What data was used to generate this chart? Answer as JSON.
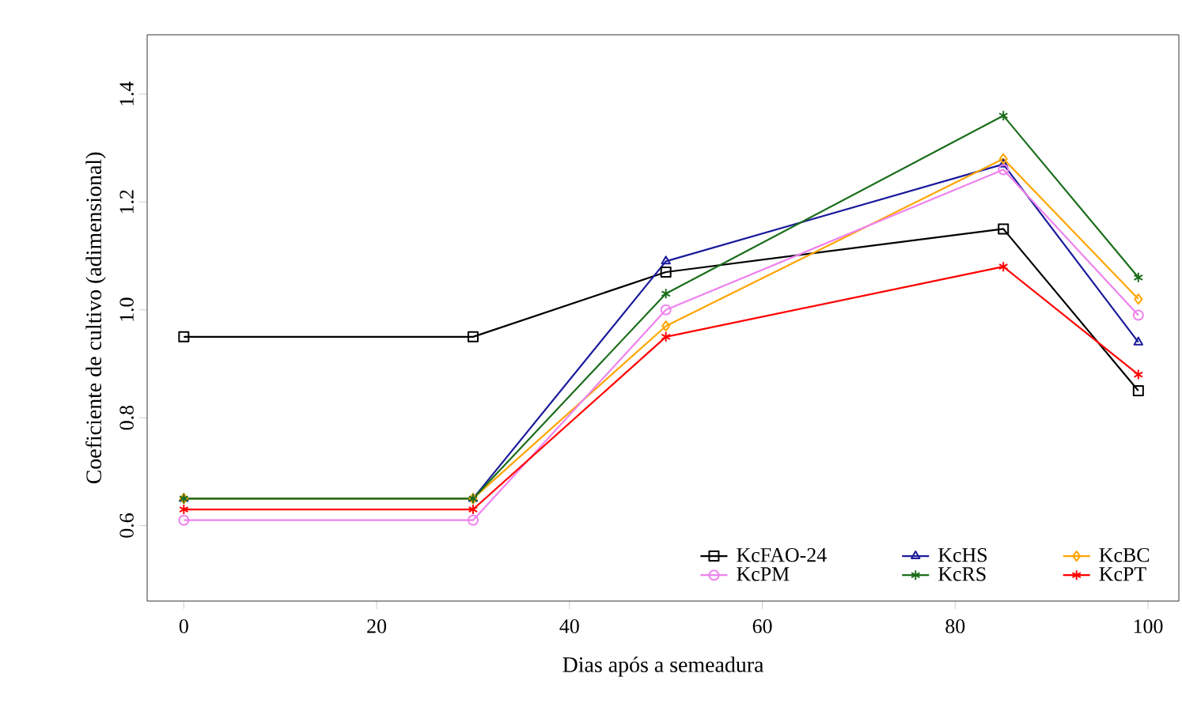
{
  "chart_data": {
    "type": "line",
    "xlabel": "Dias após a semeadura",
    "ylabel": "Coeficiente de cultivo (adimensional)",
    "xlim": [
      -3.8,
      103.2
    ],
    "ylim": [
      0.46,
      1.51
    ],
    "xticks": [
      0,
      20,
      40,
      60,
      80,
      100
    ],
    "yticks": [
      0.6,
      0.8,
      {
        "value": 1.0,
        "label": "1.0"
      },
      1.2,
      1.4
    ],
    "x": [
      0,
      30,
      50,
      85,
      99
    ],
    "grid": false,
    "legend": "bottom right",
    "line_style": "solid",
    "series": [
      {
        "name": "KcFAO-24",
        "color": "#000000",
        "marker": "square",
        "values": [
          0.95,
          0.95,
          1.07,
          1.15,
          0.85
        ]
      },
      {
        "name": "KcHS",
        "color": "#1a1a9c",
        "marker": "triangle",
        "values": [
          0.65,
          0.65,
          1.09,
          1.27,
          0.94
        ]
      },
      {
        "name": "KcBC",
        "color": "#ffa500",
        "marker": "diamond",
        "values": [
          0.65,
          0.65,
          0.97,
          1.28,
          1.02
        ]
      },
      {
        "name": "KcPM",
        "color": "#ee82ee",
        "marker": "circle",
        "values": [
          0.61,
          0.61,
          1.0,
          1.26,
          0.99
        ]
      },
      {
        "name": "KcRS",
        "color": "#1b6e1b",
        "marker": "cross",
        "values": [
          0.65,
          0.65,
          1.03,
          1.36,
          1.06
        ]
      },
      {
        "name": "KcPT",
        "color": "#ff0000",
        "marker": "cross",
        "values": [
          0.63,
          0.63,
          0.95,
          1.08,
          0.88
        ]
      }
    ]
  }
}
